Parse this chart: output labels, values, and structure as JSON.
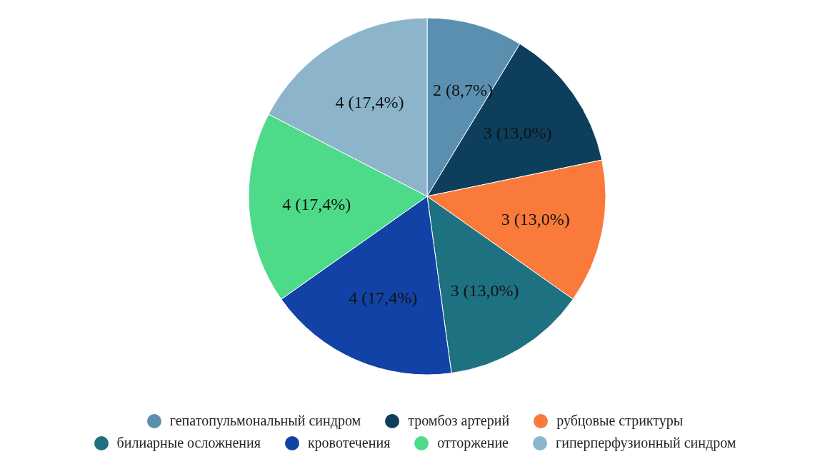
{
  "chart_data": {
    "type": "pie",
    "categories": [
      "гепатопульмональный синдром",
      "тромбоз артерий",
      "рубцовые стриктуры",
      "билиарные осложнения",
      "кровотечения",
      "отторжение",
      "гиперперфузионный синдром"
    ],
    "values": [
      2,
      3,
      3,
      3,
      4,
      4,
      4
    ],
    "colors": [
      "#5b8fb0",
      "#0d3f5c",
      "#f97a3a",
      "#1e7180",
      "#1242a6",
      "#4ddb8a",
      "#8cb5cc"
    ],
    "value_labels": [
      "2 (8,7%)",
      "3 (13,0%)",
      "3 (13,0%)",
      "3 (13,0%)",
      "4 (17,4%)",
      "4 (17,4%)",
      "4 (17,4%)"
    ],
    "legend": "bottom"
  }
}
